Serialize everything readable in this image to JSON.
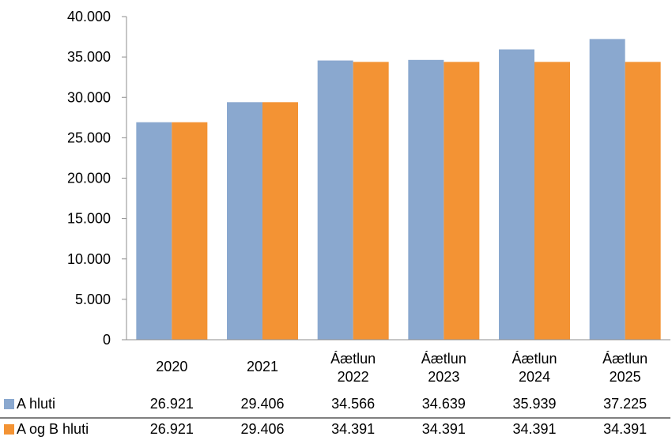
{
  "chart_data": {
    "type": "bar",
    "title": "",
    "xlabel": "",
    "ylabel": "",
    "ylim": [
      0,
      40000
    ],
    "y_ticks": [
      0,
      5000,
      10000,
      15000,
      20000,
      25000,
      30000,
      35000,
      40000
    ],
    "y_tick_labels": [
      "0",
      "5.000",
      "10.000",
      "15.000",
      "20.000",
      "25.000",
      "30.000",
      "35.000",
      "40.000"
    ],
    "grid": false,
    "legend_placement": "data-table-below",
    "categories": [
      [
        "2020"
      ],
      [
        "2021"
      ],
      [
        "Áætlun",
        "2022"
      ],
      [
        "Áætlun",
        "2023"
      ],
      [
        "Áætlun",
        "2024"
      ],
      [
        "Áætlun",
        "2025"
      ]
    ],
    "series": [
      {
        "name": "A hluti",
        "color": "#8aa8cf",
        "values": [
          26921,
          29406,
          34566,
          34639,
          35939,
          37225
        ],
        "value_labels": [
          "26.921",
          "29.406",
          "34.566",
          "34.639",
          "35.939",
          "37.225"
        ]
      },
      {
        "name": "A og B hluti",
        "color": "#f39334",
        "values": [
          26921,
          29406,
          34391,
          34391,
          34391,
          34391
        ],
        "value_labels": [
          "26.921",
          "29.406",
          "34.391",
          "34.391",
          "34.391",
          "34.391"
        ]
      }
    ]
  }
}
